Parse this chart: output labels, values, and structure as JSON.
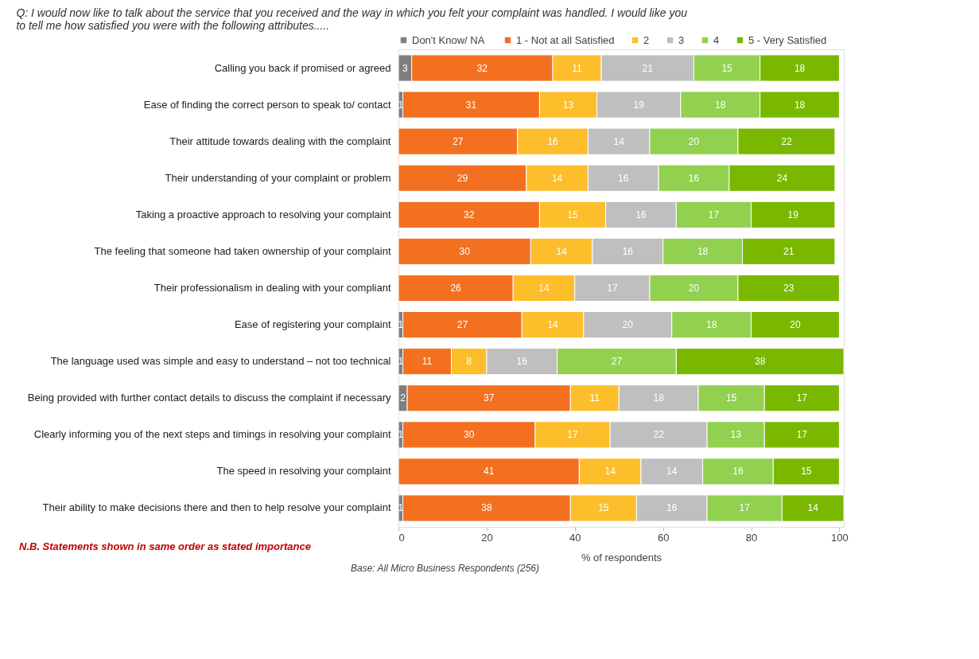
{
  "chart_data": {
    "type": "bar",
    "orientation": "horizontal",
    "stacked": true,
    "data_labels": true,
    "legend": "top right",
    "grid": false,
    "title": "Q:   I would now like to talk about the service that you received and the way in which you felt your complaint was handled. I would like you to tell me how satisfied you were with the following attributes.....",
    "xlabel": "% of respondents",
    "annotations": [
      "N.B. Statements shown  in same order as stated importance",
      "Base: All Micro Business Respondents (256)"
    ],
    "categories": [
      "Calling you back if promised or agreed",
      "Ease of finding the correct person to speak to/ contact",
      "Their attitude towards dealing with the complaint",
      "Their understanding of your complaint or problem",
      "Taking a proactive approach to resolving your complaint",
      "The feeling that someone had taken ownership of your complaint",
      "Their professionalism in dealing with your compliant",
      "Ease of registering your complaint",
      "The language used was simple and easy to understand – not too technical",
      "Being provided with further contact details to discuss the complaint if necessary",
      "Clearly informing you of the next steps and timings in resolving your complaint",
      "The speed in resolving your complaint",
      "Their ability to make decisions there and then to help resolve your complaint"
    ],
    "xlim": [
      0,
      101
    ],
    "xticks": [
      0,
      20,
      40,
      60,
      80,
      100
    ],
    "series": [
      {
        "name": "Don't Know/  NA",
        "color": "#7f7f7f",
        "values": [
          3,
          1,
          null,
          null,
          null,
          null,
          null,
          1,
          1,
          2,
          1,
          null,
          1
        ]
      },
      {
        "name": "1 - Not at all Satisfied",
        "color": "#f37021",
        "values": [
          32,
          31,
          27,
          29,
          32,
          30,
          26,
          27,
          11,
          37,
          30,
          41,
          38
        ]
      },
      {
        "name": "2",
        "color": "#fdbe2c",
        "values": [
          11,
          13,
          16,
          14,
          15,
          14,
          14,
          14,
          8,
          11,
          17,
          14,
          15
        ]
      },
      {
        "name": "3",
        "color": "#bfbfbf",
        "values": [
          21,
          19,
          14,
          16,
          16,
          16,
          17,
          20,
          16,
          18,
          22,
          14,
          16
        ]
      },
      {
        "name": "4",
        "color": "#92d050",
        "values": [
          15,
          18,
          20,
          16,
          17,
          18,
          20,
          18,
          27,
          15,
          13,
          16,
          17
        ]
      },
      {
        "name": "5 - Very Satisfied",
        "color": "#7ab800",
        "values": [
          18,
          18,
          22,
          24,
          19,
          21,
          23,
          20,
          38,
          17,
          17,
          15,
          14
        ]
      }
    ]
  }
}
